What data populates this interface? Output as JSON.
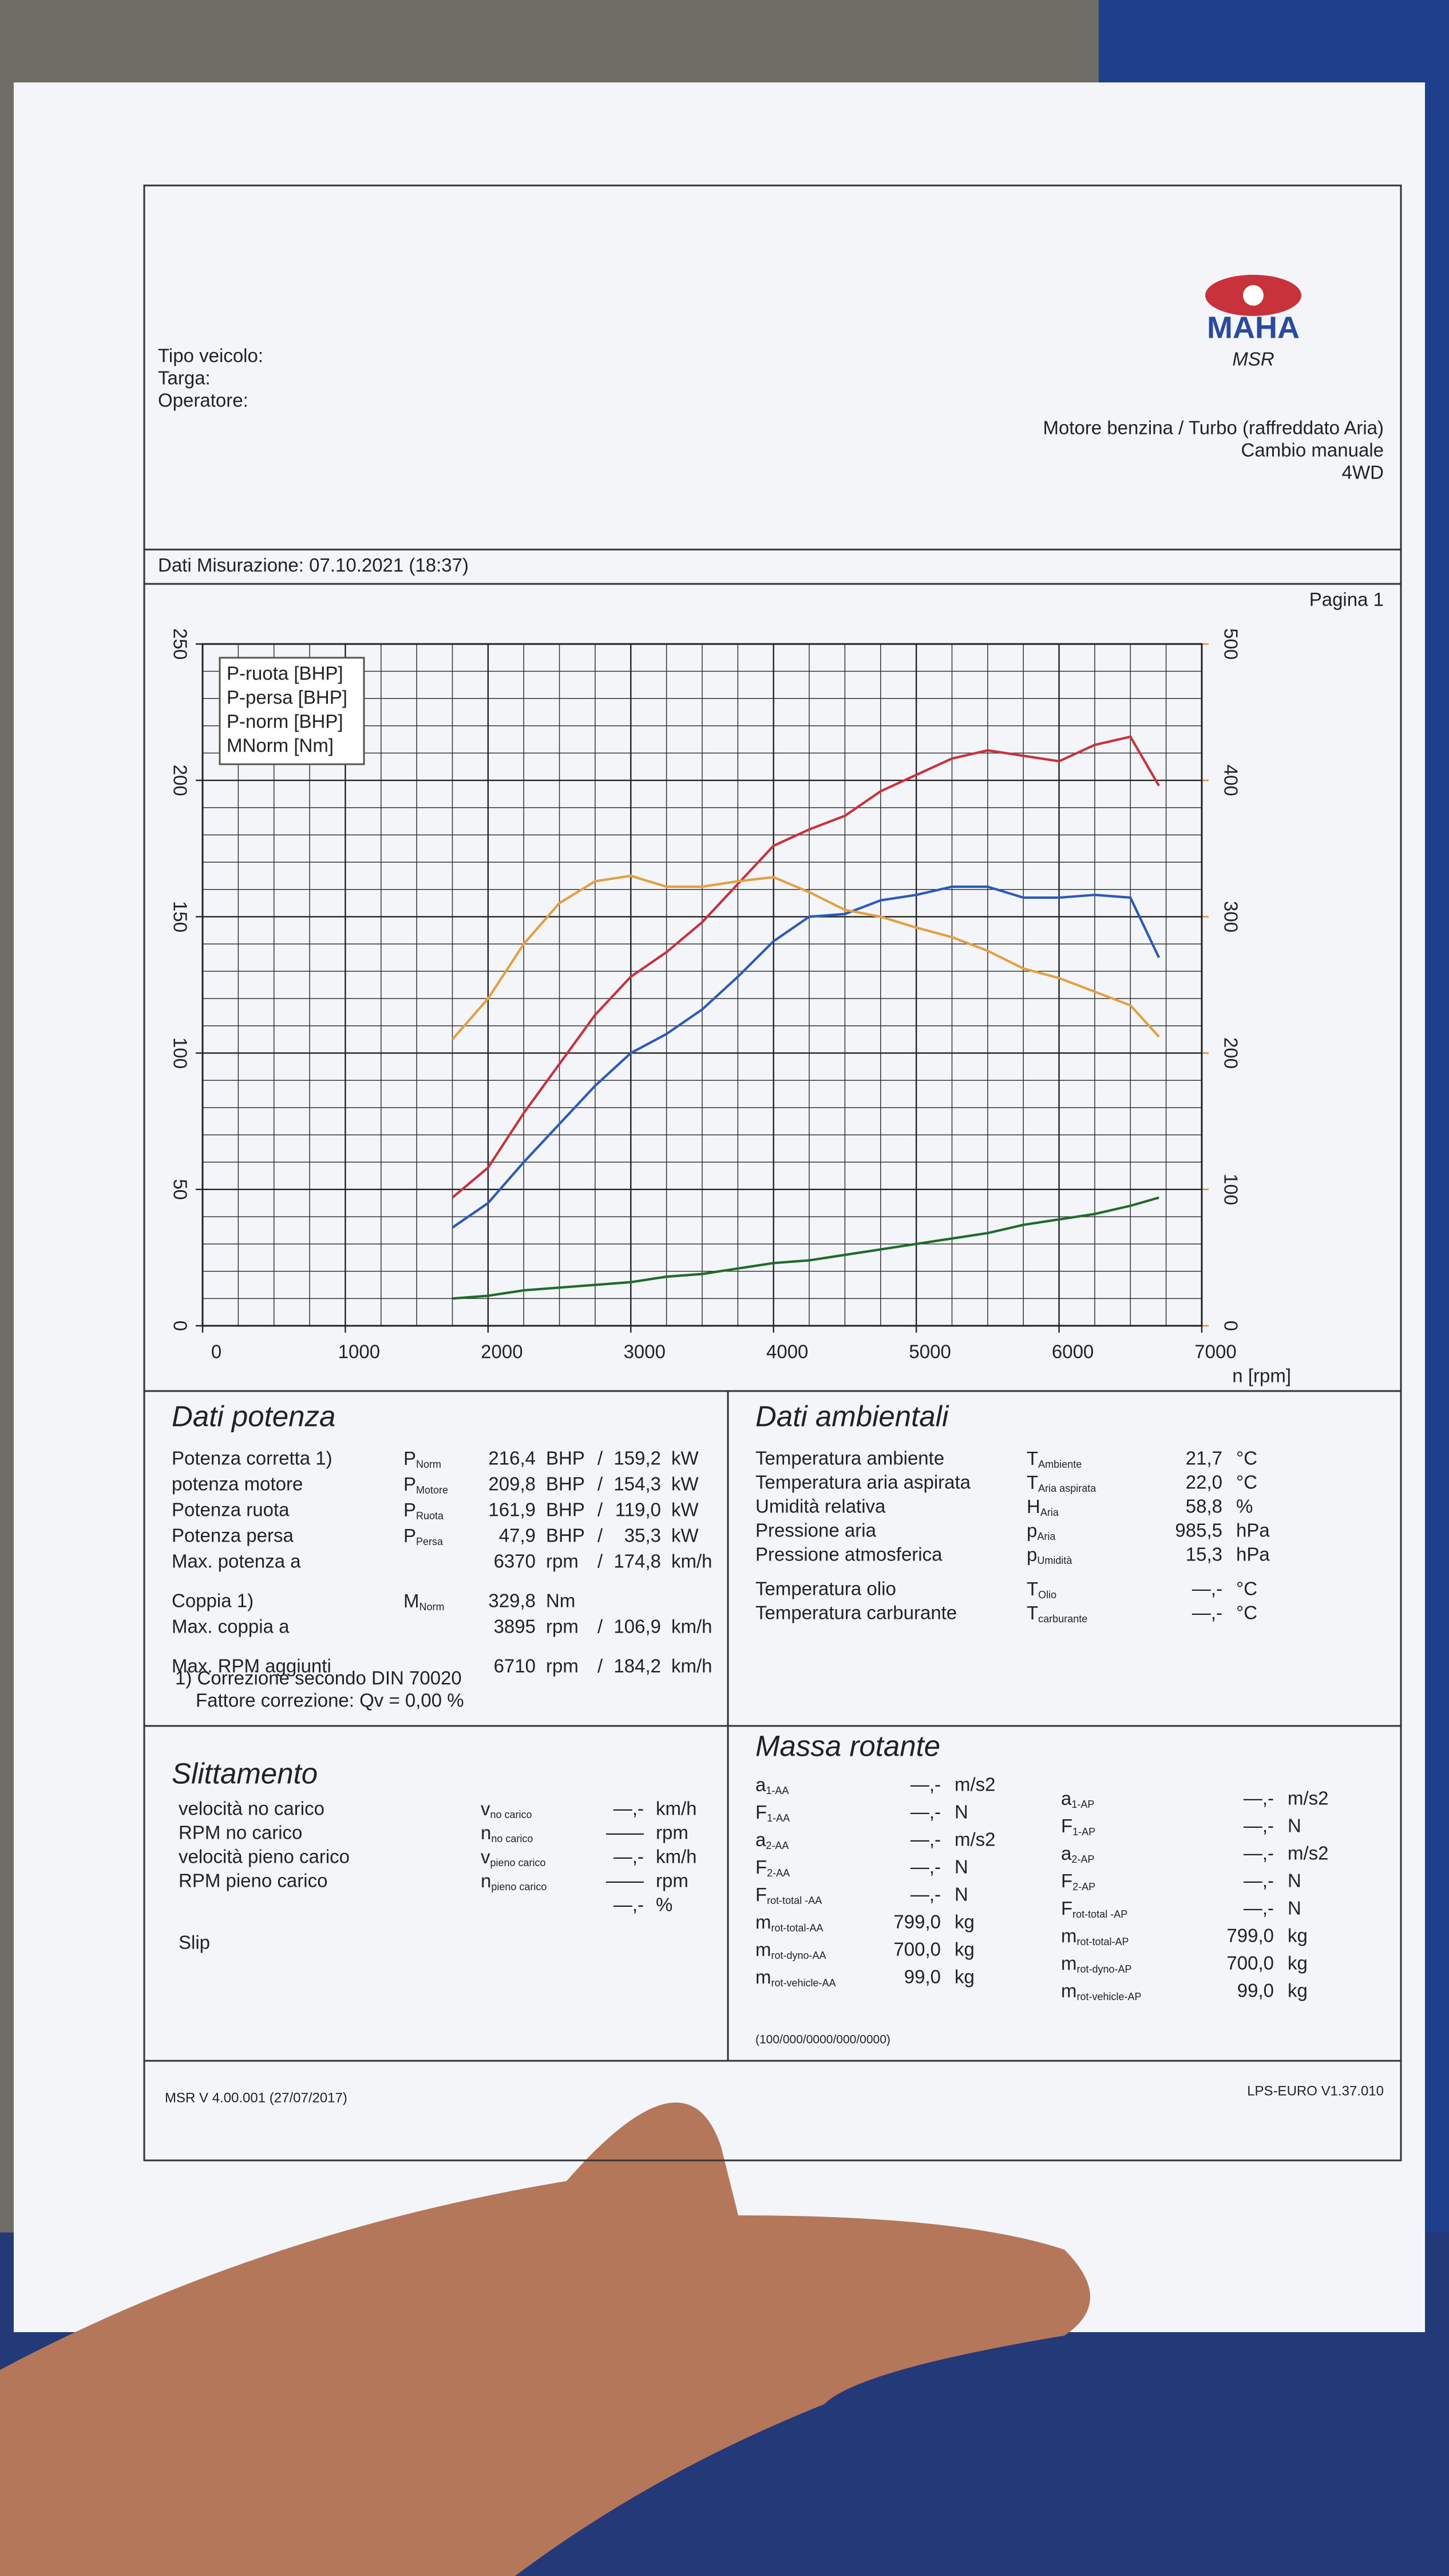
{
  "header": {
    "fields": [
      "Tipo veicolo:",
      "Targa:",
      "Operatore:"
    ],
    "logo": "MAHA",
    "logo_sub": "MSR",
    "engine": [
      "Motore benzina / Turbo (raffreddato Aria)",
      "Cambio manuale",
      "4WD"
    ],
    "date": "Dati Misurazione: 07.10.2021 (18:37)",
    "page": "Pagina 1"
  },
  "chart_data": {
    "type": "line",
    "x_label": "n [rpm]",
    "x": [
      1750,
      2000,
      2250,
      2500,
      2750,
      3000,
      3250,
      3500,
      3750,
      4000,
      4250,
      4500,
      4750,
      5000,
      5250,
      5500,
      5750,
      6000,
      6250,
      6500,
      6700
    ],
    "series": [
      {
        "name": "P-ruota [BHP]",
        "color": "#2a5bb8",
        "values": [
          36,
          45,
          60,
          74,
          88,
          100,
          107,
          116,
          128,
          141,
          150,
          151,
          156,
          158,
          161,
          161,
          157,
          157,
          158,
          157,
          135
        ]
      },
      {
        "name": "P-persa [BHP]",
        "color": "#1f6b2a",
        "values": [
          10,
          11,
          13,
          14,
          15,
          16,
          18,
          19,
          21,
          23,
          24,
          26,
          28,
          30,
          32,
          34,
          37,
          39,
          41,
          44,
          47
        ]
      },
      {
        "name": "P-norm [BHP]",
        "color": "#c8323a",
        "values": [
          47,
          58,
          78,
          96,
          114,
          128,
          137,
          148,
          162,
          176,
          182,
          187,
          196,
          202,
          208,
          211,
          209,
          207,
          213,
          216,
          198
        ]
      },
      {
        "name": "MNorm [Nm]",
        "color": "#e3a040",
        "axis": "y2",
        "values": [
          210,
          240,
          280,
          310,
          326,
          330,
          322,
          322,
          326,
          329,
          318,
          305,
          300,
          292,
          285,
          275,
          262,
          255,
          245,
          235,
          212
        ]
      }
    ],
    "xlim": [
      0,
      7000
    ],
    "xticks": [
      0,
      1000,
      2000,
      3000,
      4000,
      5000,
      6000,
      7000
    ],
    "ylim": [
      0,
      250
    ],
    "yticks": [
      0,
      50,
      100,
      150,
      200,
      250
    ],
    "y2lim": [
      0,
      500
    ],
    "y2ticks": [
      0,
      100,
      200,
      300,
      400,
      500
    ],
    "y2color": "#e3a040",
    "grid": true,
    "legend": "top-left"
  },
  "power": {
    "title": "Dati potenza",
    "rows": [
      {
        "color": "#c8323a",
        "label": "Potenza corretta 1)",
        "symbol": [
          "P",
          "Norm"
        ],
        "value": "216,4",
        "unit": "BHP",
        "sep": "/",
        "value2": "159,2",
        "unit2": "kW"
      },
      {
        "color": "#c8323a",
        "label": "potenza motore",
        "symbol": [
          "P",
          "Motore"
        ],
        "value": "209,8",
        "unit": "BHP",
        "sep": "/",
        "value2": "154,3",
        "unit2": "kW"
      },
      {
        "color": "#2a5bb8",
        "label": "Potenza ruota",
        "symbol": [
          "P",
          "Ruota"
        ],
        "value": "161,9",
        "unit": "BHP",
        "sep": "/",
        "value2": "119,0",
        "unit2": "kW"
      },
      {
        "color": "#1f6b2a",
        "label": "Potenza persa",
        "symbol": [
          "P",
          "Persa"
        ],
        "value": "47,9",
        "unit": "BHP",
        "sep": "/",
        "value2": "35,3",
        "unit2": "kW"
      },
      {
        "color": "#222222",
        "label": "Max. potenza a",
        "value": "6370",
        "unit": "rpm",
        "sep": "/",
        "value2": "174,8",
        "unit2": "km/h"
      },
      {
        "color": "#e3a040",
        "label": "Coppia 1)",
        "symbol": [
          "M",
          "Norm"
        ],
        "value": "329,8",
        "unit": "Nm"
      },
      {
        "color": "#222222",
        "label": "Max. coppia a",
        "value": "3895",
        "unit": "rpm",
        "sep": "/",
        "value2": "106,9",
        "unit2": "km/h"
      },
      {
        "color": "#222222",
        "label": "Max. RPM aggiunti",
        "value": "6710",
        "unit": "rpm",
        "sep": "/",
        "value2": "184,2",
        "unit2": "km/h"
      }
    ],
    "notes": [
      "1) Correzione secondo DIN 70020",
      "Fattore correzione: Qv = 0,00 %"
    ]
  },
  "ambient": {
    "title": "Dati ambientali",
    "rows": [
      {
        "label": "Temperatura ambiente",
        "symbol": [
          "T",
          "Ambiente"
        ],
        "value": "21,7",
        "unit": "°C"
      },
      {
        "label": "Temperatura aria aspirata",
        "symbol": [
          "T",
          "Aria aspirata"
        ],
        "value": "22,0",
        "unit": "°C"
      },
      {
        "label": "Umidità relativa",
        "symbol": [
          "H",
          "Aria"
        ],
        "value": "58,8",
        "unit": "%"
      },
      {
        "label": "Pressione aria",
        "symbol": [
          "p",
          "Aria"
        ],
        "value": "985,5",
        "unit": "hPa"
      },
      {
        "label": "Pressione atmosferica",
        "symbol": [
          "p",
          "Umidità"
        ],
        "value": "15,3",
        "unit": "hPa"
      },
      {
        "label": "Temperatura olio",
        "symbol": [
          "T",
          "Olio"
        ],
        "value": "—,-",
        "unit": "°C"
      },
      {
        "label": "Temperatura carburante",
        "symbol": [
          "T",
          "carburante"
        ],
        "value": "—,-",
        "unit": "°C"
      }
    ]
  },
  "slip": {
    "title": "Slittamento",
    "rows": [
      {
        "label": "velocità no carico",
        "symbol": [
          "v",
          "no carico"
        ],
        "value": "—,-",
        "unit": "km/h"
      },
      {
        "label": "RPM no carico",
        "symbol": [
          "n",
          "no carico"
        ],
        "value": "——",
        "unit": "rpm"
      },
      {
        "label": "velocità pieno carico",
        "symbol": [
          "v",
          "pieno carico"
        ],
        "value": "—,-",
        "unit": "km/h"
      },
      {
        "label": "RPM pieno carico",
        "symbol": [
          "n",
          "pieno carico"
        ],
        "value": "——",
        "unit": "rpm"
      },
      {
        "value": "—,-",
        "unit": "%"
      },
      {
        "label": "Slip"
      }
    ]
  },
  "mass": {
    "title": "Massa rotante",
    "left": [
      {
        "symbol": [
          "a",
          "1-AA"
        ],
        "value": "—,-",
        "unit": "m/s2"
      },
      {
        "symbol": [
          "F",
          "1-AA"
        ],
        "value": "—,-",
        "unit": "N"
      },
      {
        "symbol": [
          "a",
          "2-AA"
        ],
        "value": "—,-",
        "unit": "m/s2"
      },
      {
        "symbol": [
          "F",
          "2-AA"
        ],
        "value": "—,-",
        "unit": "N"
      },
      {
        "symbol": [
          "F",
          "rot-total -AA"
        ],
        "value": "—,-",
        "unit": "N"
      },
      {
        "symbol": [
          "m",
          "rot-total-AA"
        ],
        "value": "799,0",
        "unit": "kg"
      },
      {
        "symbol": [
          "m",
          "rot-dyno-AA"
        ],
        "value": "700,0",
        "unit": "kg"
      },
      {
        "symbol": [
          "m",
          "rot-vehicle-AA"
        ],
        "value": "99,0",
        "unit": "kg"
      }
    ],
    "right": [
      {
        "symbol": [
          "a",
          "1-AP"
        ],
        "value": "—,-",
        "unit": "m/s2"
      },
      {
        "symbol": [
          "F",
          "1-AP"
        ],
        "value": "—,-",
        "unit": "N"
      },
      {
        "symbol": [
          "a",
          "2-AP"
        ],
        "value": "—,-",
        "unit": "m/s2"
      },
      {
        "symbol": [
          "F",
          "2-AP"
        ],
        "value": "—,-",
        "unit": "N"
      },
      {
        "symbol": [
          "F",
          "rot-total -AP"
        ],
        "value": "—,-",
        "unit": "N"
      },
      {
        "symbol": [
          "m",
          "rot-total-AP"
        ],
        "value": "799,0",
        "unit": "kg"
      },
      {
        "symbol": [
          "m",
          "rot-dyno-AP"
        ],
        "value": "700,0",
        "unit": "kg"
      },
      {
        "symbol": [
          "m",
          "rot-vehicle-AP"
        ],
        "value": "99,0",
        "unit": "kg"
      }
    ],
    "code": "(100/000/0000/000/0000)"
  },
  "footer": {
    "left": "MSR V 4.00.001 (27/07/2017)",
    "right": "LPS-EURO V1.37.010"
  }
}
